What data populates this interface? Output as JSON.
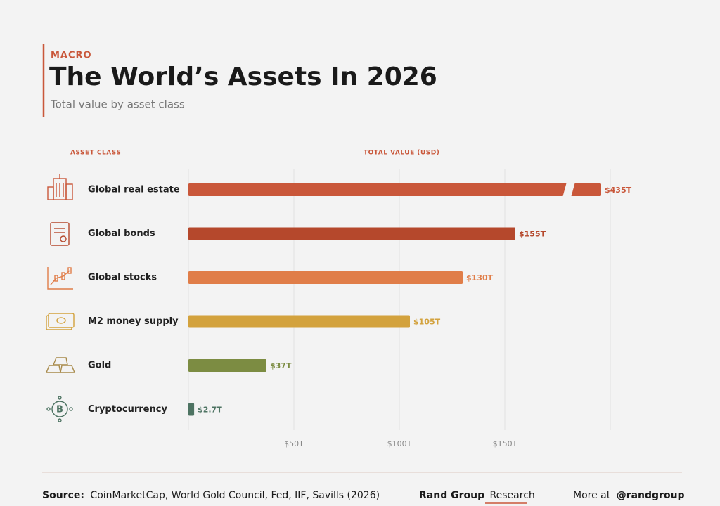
{
  "header": {
    "kicker": "MACRO",
    "title": "The World’s Assets In 2026",
    "subtitle": "Total value by asset class"
  },
  "chart_data": {
    "type": "bar",
    "orientation": "horizontal",
    "category_header": "ASSET CLASS",
    "value_header": "TOTAL VALUE (USD)",
    "categories": [
      "Global real estate",
      "Global bonds",
      "Global stocks",
      "M2 money supply",
      "Gold",
      "Cryptocurrency"
    ],
    "values": [
      435,
      155,
      130,
      105,
      37,
      2.7
    ],
    "value_labels": [
      "$435T",
      "$155T",
      "$130T",
      "$105T",
      "$37T",
      "$2.7T"
    ],
    "colors": [
      "#c9573a",
      "#b5482c",
      "#e07d48",
      "#d3a23d",
      "#7c8c42",
      "#4d7362"
    ],
    "xlim": [
      0,
      200
    ],
    "xticks": [
      {
        "value": 50,
        "label": "$50T"
      },
      {
        "value": 100,
        "label": "$100T"
      },
      {
        "value": 150,
        "label": "$150T"
      }
    ],
    "grid": true,
    "axis_break": true
  },
  "footer": {
    "source_label": "Source:",
    "source": "CoinMarketCap, World Gold Council, Fed, IIF, Savills (2026)",
    "brand": "Rand Group",
    "brand_suffix": "Research",
    "more": "More at",
    "handle": "@randgroup"
  }
}
